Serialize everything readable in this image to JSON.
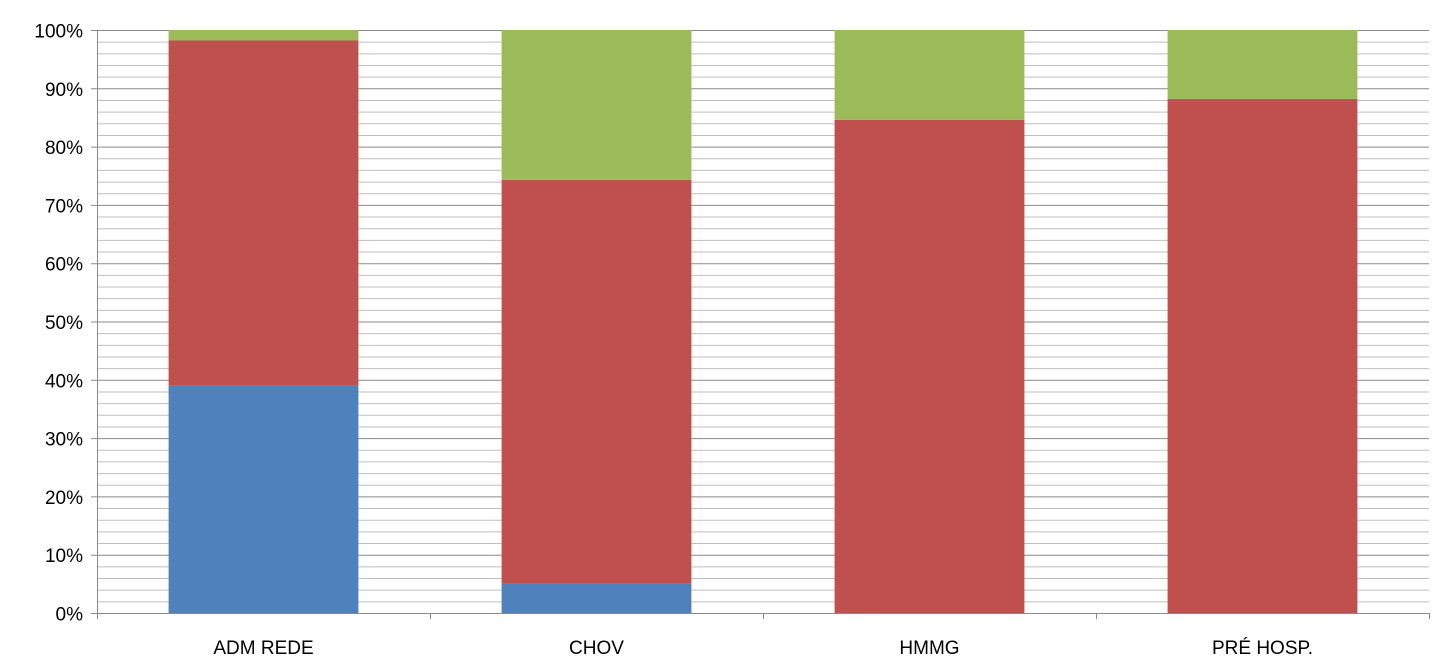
{
  "chart_data": {
    "type": "bar",
    "stacked": "percent",
    "categories": [
      "ADM REDE",
      "CHOV",
      "HMMG",
      "PRÉ HOSP."
    ],
    "series": [
      {
        "values": [
          39,
          5,
          0,
          0
        ],
        "color": "#4F81BD"
      },
      {
        "values": [
          59.2,
          69.3,
          84.6,
          88.2
        ],
        "color": "#C0504D"
      },
      {
        "values": [
          1.8,
          25.7,
          15.4,
          11.8
        ],
        "color": "#9BBB59"
      }
    ],
    "yticks": [
      "0%",
      "10%",
      "20%",
      "30%",
      "40%",
      "50%",
      "60%",
      "70%",
      "80%",
      "90%",
      "100%"
    ],
    "ylim": [
      0,
      100
    ],
    "minor_grid_step": 2,
    "title": "",
    "xlabel": "",
    "ylabel": "",
    "grid": true,
    "legend": "none"
  }
}
